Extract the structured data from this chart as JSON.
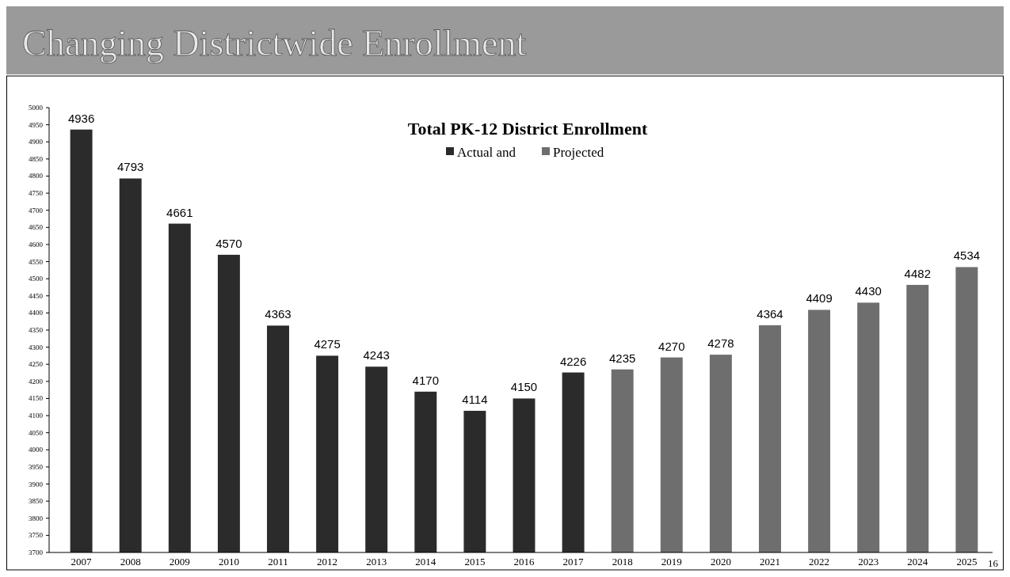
{
  "chart_data": {
    "type": "bar",
    "title": "Changing Districtwide Enrollment",
    "subtitle": "Total PK-12 District Enrollment",
    "categories": [
      "2007",
      "2008",
      "2009",
      "2010",
      "2011",
      "2012",
      "2013",
      "2014",
      "2015",
      "2016",
      "2017",
      "2018",
      "2019",
      "2020",
      "2021",
      "2022",
      "2023",
      "2024",
      "2025"
    ],
    "series": [
      {
        "name": "Actual and",
        "color": "#2b2b2b",
        "values": [
          4936,
          4793,
          4661,
          4570,
          4363,
          4275,
          4243,
          4170,
          4114,
          4150,
          4226,
          null,
          null,
          null,
          null,
          null,
          null,
          null,
          null
        ]
      },
      {
        "name": "Projected",
        "color": "#6e6e6e",
        "values": [
          null,
          null,
          null,
          null,
          null,
          null,
          null,
          null,
          null,
          null,
          null,
          4235,
          4270,
          4278,
          4364,
          4409,
          4430,
          4482,
          4534
        ]
      }
    ],
    "ylim": [
      3700,
      5000
    ],
    "yticks": [
      3700,
      3750,
      3800,
      3850,
      3900,
      3950,
      4000,
      4050,
      4100,
      4150,
      4200,
      4250,
      4300,
      4350,
      4400,
      4450,
      4500,
      4550,
      4600,
      4650,
      4700,
      4750,
      4800,
      4850,
      4900,
      4950,
      5000
    ],
    "data_labels": true,
    "legend": "top",
    "grid": false,
    "annotations": [
      "16"
    ]
  }
}
